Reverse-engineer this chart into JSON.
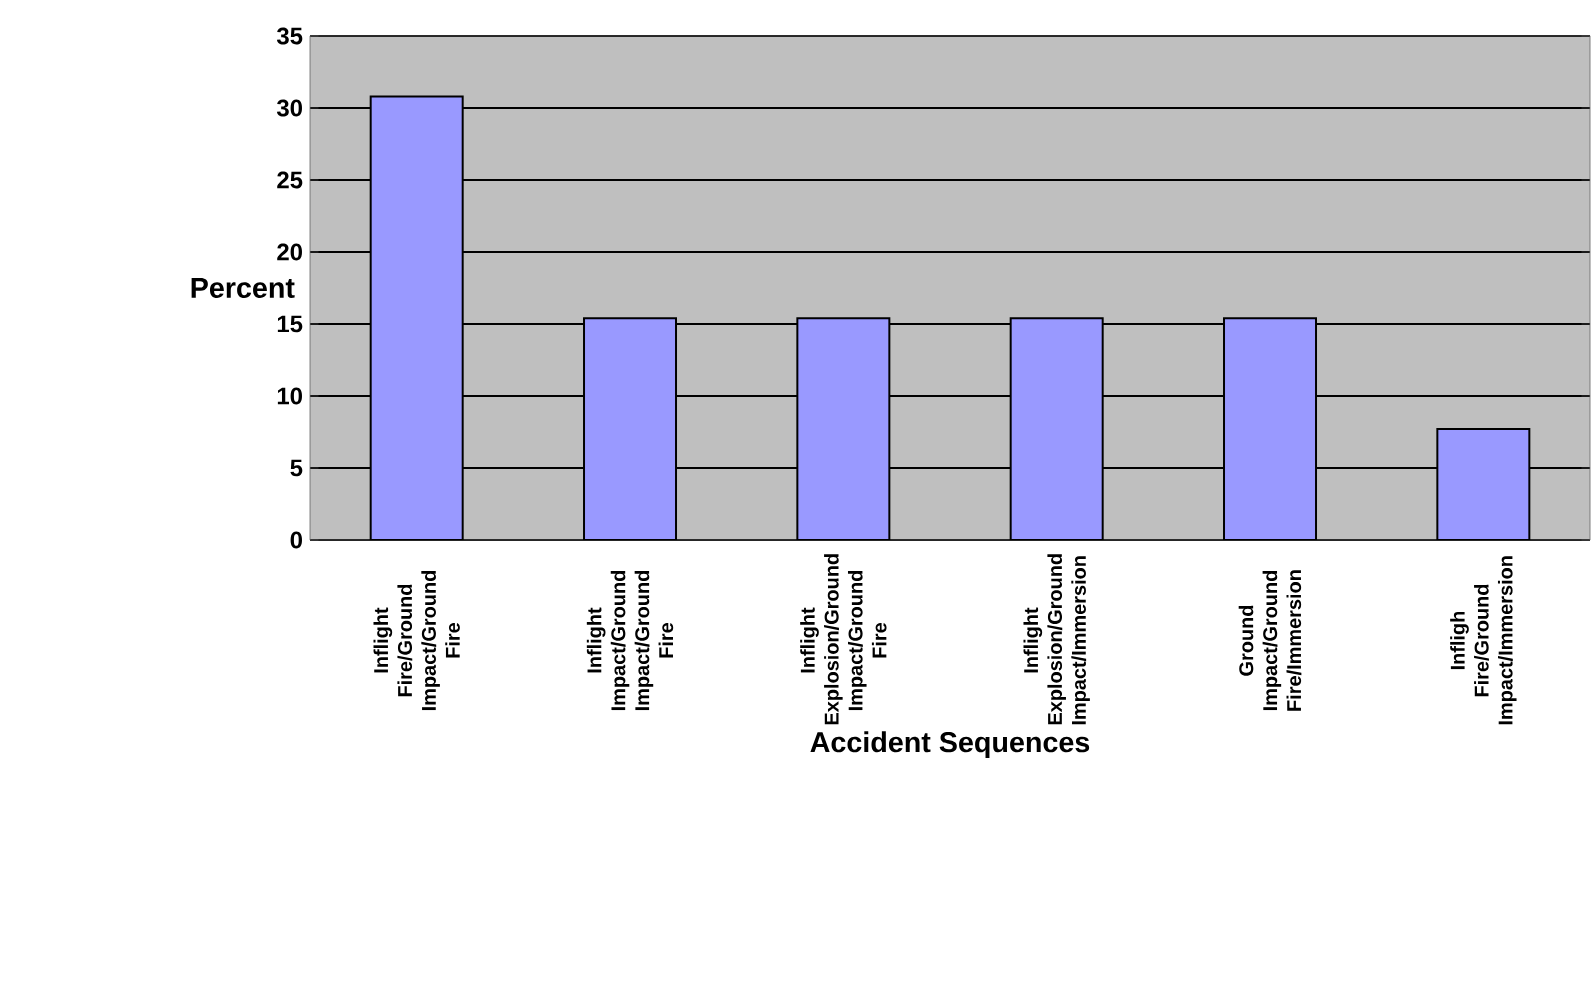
{
  "chart_data": {
    "type": "bar",
    "xlabel": "Accident Sequences",
    "ylabel": "Percent",
    "categories": [
      "Inflight Fire/Ground Impact/Ground Fire",
      "Inflight Impact/Ground Impact/Ground Fire",
      "Inflight Explosion/Ground Impact/Ground Fire",
      "Inflight Explosion/Ground Impact/Immersion",
      "Ground Impact/Ground Fire/Immersion",
      "Infligh Fire/Ground Impact/Immersion"
    ],
    "values": [
      30.8,
      15.4,
      15.4,
      15.4,
      15.4,
      7.7
    ],
    "color": "#9999ff",
    "ylim": [
      0,
      35
    ],
    "yticks": [
      0,
      5,
      10,
      15,
      20,
      25,
      30,
      35
    ],
    "grid": "y"
  }
}
